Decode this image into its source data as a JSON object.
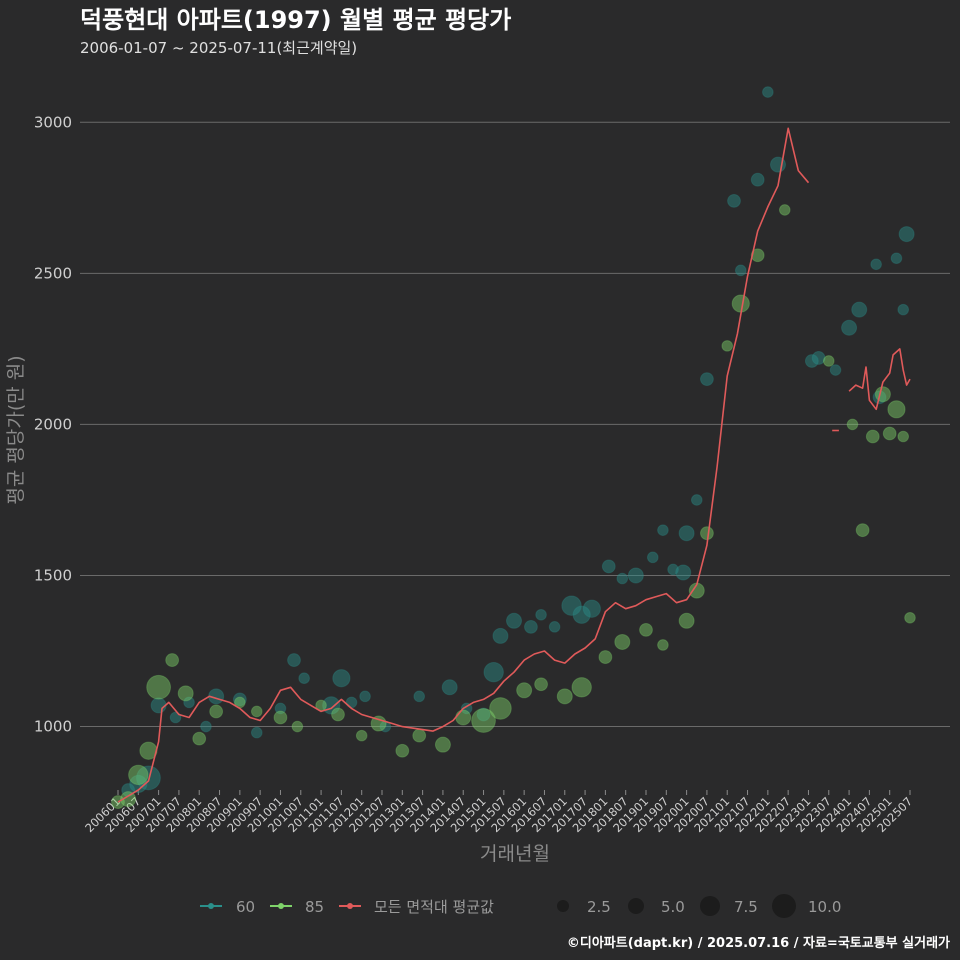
{
  "chart_data": {
    "type": "scatter",
    "title": "덕풍현대 아파트(1997) 월별 평균 평당가",
    "subtitle": "2006-01-07 ~ 2025-07-11(최근계약일)",
    "xlabel": "거래년월",
    "ylabel": "평균 평당가(만 원)",
    "ylim": [
      790,
      3140
    ],
    "yticks": [
      1000,
      1500,
      2000,
      2500,
      3000
    ],
    "x_start": "2006-01",
    "x_end": "2025-07",
    "xtick_labels": [
      "200601",
      "200607",
      "200701",
      "200707",
      "200801",
      "200807",
      "200901",
      "200907",
      "201001",
      "201007",
      "201101",
      "201107",
      "201201",
      "201207",
      "201301",
      "201307",
      "201401",
      "201407",
      "201501",
      "201507",
      "201601",
      "201607",
      "201701",
      "201707",
      "201801",
      "201807",
      "201901",
      "201907",
      "202001",
      "202007",
      "202101",
      "202107",
      "202201",
      "202207",
      "202301",
      "202307",
      "202401",
      "202407",
      "202501",
      "202507"
    ],
    "grid": true,
    "legend": {
      "series": [
        {
          "name": "60",
          "color": "#2a8f8a"
        },
        {
          "name": "85",
          "color": "#7fd36a"
        },
        {
          "name": "모든 면적대 평균값",
          "color": "#e05a5a"
        }
      ],
      "size_values": [
        "2.5",
        "5.0",
        "7.5",
        "10.0"
      ]
    },
    "average_line": [
      [
        "2006-01",
        750
      ],
      [
        "2006-04",
        770
      ],
      [
        "2006-07",
        790
      ],
      [
        "2006-10",
        820
      ],
      [
        "2007-01",
        950
      ],
      [
        "2007-02",
        1060
      ],
      [
        "2007-04",
        1080
      ],
      [
        "2007-07",
        1040
      ],
      [
        "2007-10",
        1030
      ],
      [
        "2008-01",
        1080
      ],
      [
        "2008-04",
        1100
      ],
      [
        "2008-07",
        1090
      ],
      [
        "2008-10",
        1080
      ],
      [
        "2009-01",
        1060
      ],
      [
        "2009-04",
        1030
      ],
      [
        "2009-07",
        1020
      ],
      [
        "2009-10",
        1060
      ],
      [
        "2010-01",
        1120
      ],
      [
        "2010-04",
        1130
      ],
      [
        "2010-07",
        1090
      ],
      [
        "2010-10",
        1070
      ],
      [
        "2011-01",
        1050
      ],
      [
        "2011-04",
        1060
      ],
      [
        "2011-07",
        1090
      ],
      [
        "2011-10",
        1060
      ],
      [
        "2012-01",
        1040
      ],
      [
        "2012-04",
        1030
      ],
      [
        "2012-07",
        1020
      ],
      [
        "2012-10",
        1010
      ],
      [
        "2013-01",
        1000
      ],
      [
        "2013-04",
        995
      ],
      [
        "2013-07",
        990
      ],
      [
        "2013-10",
        985
      ],
      [
        "2014-01",
        1000
      ],
      [
        "2014-04",
        1020
      ],
      [
        "2014-07",
        1060
      ],
      [
        "2014-10",
        1080
      ],
      [
        "2015-01",
        1090
      ],
      [
        "2015-04",
        1110
      ],
      [
        "2015-07",
        1150
      ],
      [
        "2015-10",
        1180
      ],
      [
        "2016-01",
        1220
      ],
      [
        "2016-04",
        1240
      ],
      [
        "2016-07",
        1250
      ],
      [
        "2016-10",
        1220
      ],
      [
        "2017-01",
        1210
      ],
      [
        "2017-04",
        1240
      ],
      [
        "2017-07",
        1260
      ],
      [
        "2017-10",
        1290
      ],
      [
        "2018-01",
        1380
      ],
      [
        "2018-04",
        1410
      ],
      [
        "2018-07",
        1390
      ],
      [
        "2018-10",
        1400
      ],
      [
        "2019-01",
        1420
      ],
      [
        "2019-04",
        1430
      ],
      [
        "2019-07",
        1440
      ],
      [
        "2019-10",
        1410
      ],
      [
        "2020-01",
        1420
      ],
      [
        "2020-04",
        1470
      ],
      [
        "2020-07",
        1600
      ],
      [
        "2020-10",
        1860
      ],
      [
        "2021-01",
        2160
      ],
      [
        "2021-04",
        2300
      ],
      [
        "2021-07",
        2490
      ],
      [
        "2021-10",
        2640
      ],
      [
        "2022-01",
        2720
      ],
      [
        "2022-04",
        2790
      ],
      [
        "2022-07",
        2980
      ],
      [
        "2022-10",
        2840
      ],
      [
        "2023-01",
        2800
      ],
      null,
      [
        "2023-08",
        1980
      ],
      [
        "2023-10",
        1980
      ],
      null,
      [
        "2024-01",
        2110
      ],
      [
        "2024-03",
        2130
      ],
      [
        "2024-05",
        2120
      ],
      [
        "2024-06",
        2190
      ],
      [
        "2024-07",
        2080
      ],
      [
        "2024-09",
        2050
      ],
      [
        "2024-11",
        2140
      ],
      [
        "2025-01",
        2170
      ],
      [
        "2025-02",
        2230
      ],
      [
        "2025-04",
        2250
      ],
      [
        "2025-05",
        2180
      ],
      [
        "2025-06",
        2130
      ],
      [
        "2025-07",
        2150
      ]
    ],
    "series": [
      {
        "name": "60",
        "points": [
          [
            "2006-04",
            790,
            4
          ],
          [
            "2006-07",
            810,
            6
          ],
          [
            "2006-10",
            830,
            9
          ],
          [
            "2007-01",
            1070,
            5
          ],
          [
            "2007-06",
            1030,
            3
          ],
          [
            "2007-10",
            1080,
            3
          ],
          [
            "2008-03",
            1000,
            3
          ],
          [
            "2008-06",
            1100,
            5
          ],
          [
            "2009-01",
            1090,
            4
          ],
          [
            "2009-06",
            980,
            3
          ],
          [
            "2010-01",
            1060,
            3
          ],
          [
            "2010-05",
            1220,
            4
          ],
          [
            "2010-08",
            1160,
            3
          ],
          [
            "2011-04",
            1070,
            6
          ],
          [
            "2011-07",
            1160,
            6
          ],
          [
            "2011-10",
            1080,
            3
          ],
          [
            "2012-02",
            1100,
            3
          ],
          [
            "2012-08",
            1000,
            3
          ],
          [
            "2013-06",
            1100,
            3
          ],
          [
            "2014-03",
            1130,
            5
          ],
          [
            "2014-08",
            1060,
            3
          ],
          [
            "2015-01",
            1040,
            4
          ],
          [
            "2015-04",
            1180,
            7
          ],
          [
            "2015-06",
            1300,
            5
          ],
          [
            "2015-10",
            1350,
            5
          ],
          [
            "2016-03",
            1330,
            4
          ],
          [
            "2016-06",
            1370,
            3
          ],
          [
            "2016-10",
            1330,
            3
          ],
          [
            "2017-03",
            1400,
            7
          ],
          [
            "2017-06",
            1370,
            6
          ],
          [
            "2017-09",
            1390,
            6
          ],
          [
            "2018-02",
            1530,
            4
          ],
          [
            "2018-06",
            1490,
            3
          ],
          [
            "2018-10",
            1500,
            5
          ],
          [
            "2019-03",
            1560,
            3
          ],
          [
            "2019-06",
            1650,
            3
          ],
          [
            "2019-09",
            1520,
            3
          ],
          [
            "2019-12",
            1510,
            5
          ],
          [
            "2020-01",
            1640,
            5
          ],
          [
            "2020-04",
            1750,
            3
          ],
          [
            "2020-07",
            2150,
            4
          ],
          [
            "2021-03",
            2740,
            4
          ],
          [
            "2021-05",
            2510,
            3
          ],
          [
            "2021-10",
            2810,
            4
          ],
          [
            "2022-01",
            3100,
            3
          ],
          [
            "2022-04",
            2860,
            5
          ],
          [
            "2023-02",
            2210,
            4
          ],
          [
            "2023-04",
            2220,
            4
          ],
          [
            "2023-09",
            2180,
            3
          ],
          [
            "2024-01",
            2320,
            5
          ],
          [
            "2024-04",
            2380,
            5
          ],
          [
            "2024-09",
            2530,
            3
          ],
          [
            "2024-10",
            2090,
            4
          ],
          [
            "2025-03",
            2550,
            3
          ],
          [
            "2025-05",
            2380,
            3
          ],
          [
            "2025-06",
            2630,
            5
          ]
        ]
      },
      {
        "name": "85",
        "points": [
          [
            "2006-01",
            750,
            4
          ],
          [
            "2006-04",
            760,
            5
          ],
          [
            "2006-07",
            840,
            7
          ],
          [
            "2006-10",
            920,
            6
          ],
          [
            "2007-01",
            1130,
            9
          ],
          [
            "2007-05",
            1220,
            4
          ],
          [
            "2007-09",
            1110,
            5
          ],
          [
            "2008-01",
            960,
            4
          ],
          [
            "2008-06",
            1050,
            4
          ],
          [
            "2009-01",
            1080,
            3
          ],
          [
            "2009-06",
            1050,
            3
          ],
          [
            "2010-01",
            1030,
            4
          ],
          [
            "2010-06",
            1000,
            3
          ],
          [
            "2011-01",
            1070,
            3
          ],
          [
            "2011-06",
            1040,
            4
          ],
          [
            "2012-01",
            970,
            3
          ],
          [
            "2012-06",
            1010,
            5
          ],
          [
            "2013-01",
            920,
            4
          ],
          [
            "2013-06",
            970,
            4
          ],
          [
            "2014-01",
            940,
            5
          ],
          [
            "2014-07",
            1030,
            5
          ],
          [
            "2015-01",
            1020,
            9
          ],
          [
            "2015-06",
            1060,
            8
          ],
          [
            "2016-01",
            1120,
            5
          ],
          [
            "2016-06",
            1140,
            4
          ],
          [
            "2017-01",
            1100,
            5
          ],
          [
            "2017-06",
            1130,
            7
          ],
          [
            "2018-01",
            1230,
            4
          ],
          [
            "2018-06",
            1280,
            5
          ],
          [
            "2019-01",
            1320,
            4
          ],
          [
            "2019-06",
            1270,
            3
          ],
          [
            "2020-01",
            1350,
            5
          ],
          [
            "2020-04",
            1450,
            5
          ],
          [
            "2020-07",
            1640,
            4
          ],
          [
            "2021-01",
            2260,
            3
          ],
          [
            "2021-05",
            2400,
            6
          ],
          [
            "2021-10",
            2560,
            4
          ],
          [
            "2022-06",
            2710,
            3
          ],
          [
            "2023-07",
            2210,
            3
          ],
          [
            "2024-02",
            2000,
            3
          ],
          [
            "2024-05",
            1650,
            4
          ],
          [
            "2024-08",
            1960,
            4
          ],
          [
            "2024-11",
            2100,
            5
          ],
          [
            "2025-01",
            1970,
            4
          ],
          [
            "2025-03",
            2050,
            6
          ],
          [
            "2025-05",
            1960,
            3
          ],
          [
            "2025-07",
            1360,
            3
          ]
        ]
      }
    ]
  },
  "footer": "©디아파트(dapt.kr) / 2025.07.16 / 자료=국토교통부 실거래가"
}
